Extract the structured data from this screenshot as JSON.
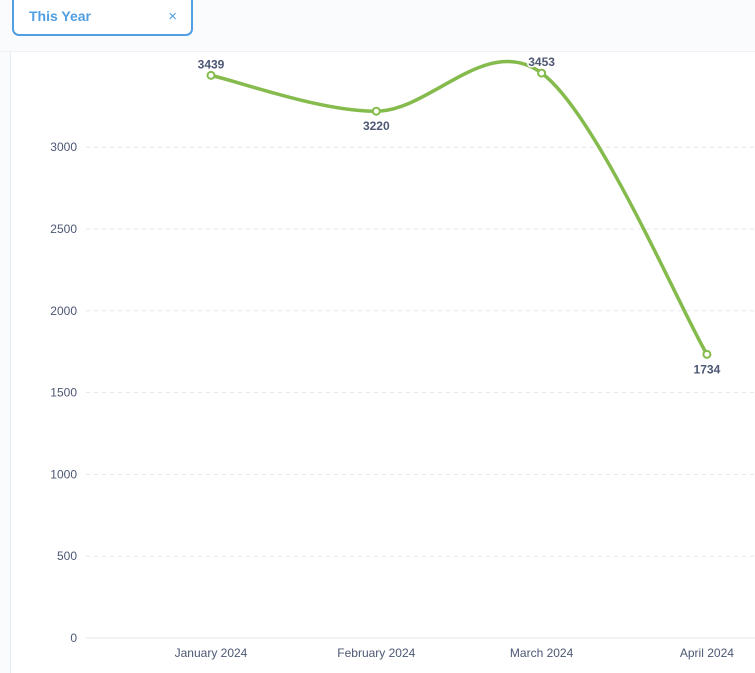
{
  "filter": {
    "label": "This Year",
    "close_glyph": "×",
    "close_icon": "close-icon"
  },
  "colors": {
    "accent": "#509ee3",
    "series": "#84bb4c",
    "text": "#4c5773",
    "grid": "#e3e6ea"
  },
  "chart_data": {
    "type": "line",
    "title": "",
    "xlabel": "",
    "ylabel": "",
    "categories": [
      "January 2024",
      "February 2024",
      "March 2024",
      "April 2024"
    ],
    "series": [
      {
        "values": [
          3439,
          3220,
          3453,
          1734
        ]
      }
    ],
    "data_labels": [
      "3439",
      "3220",
      "3453",
      "1734"
    ],
    "y_ticks": [
      0,
      500,
      1000,
      1500,
      2000,
      2500,
      3000
    ],
    "ylim": [
      0,
      3500
    ],
    "grid": true,
    "legend": "none"
  }
}
